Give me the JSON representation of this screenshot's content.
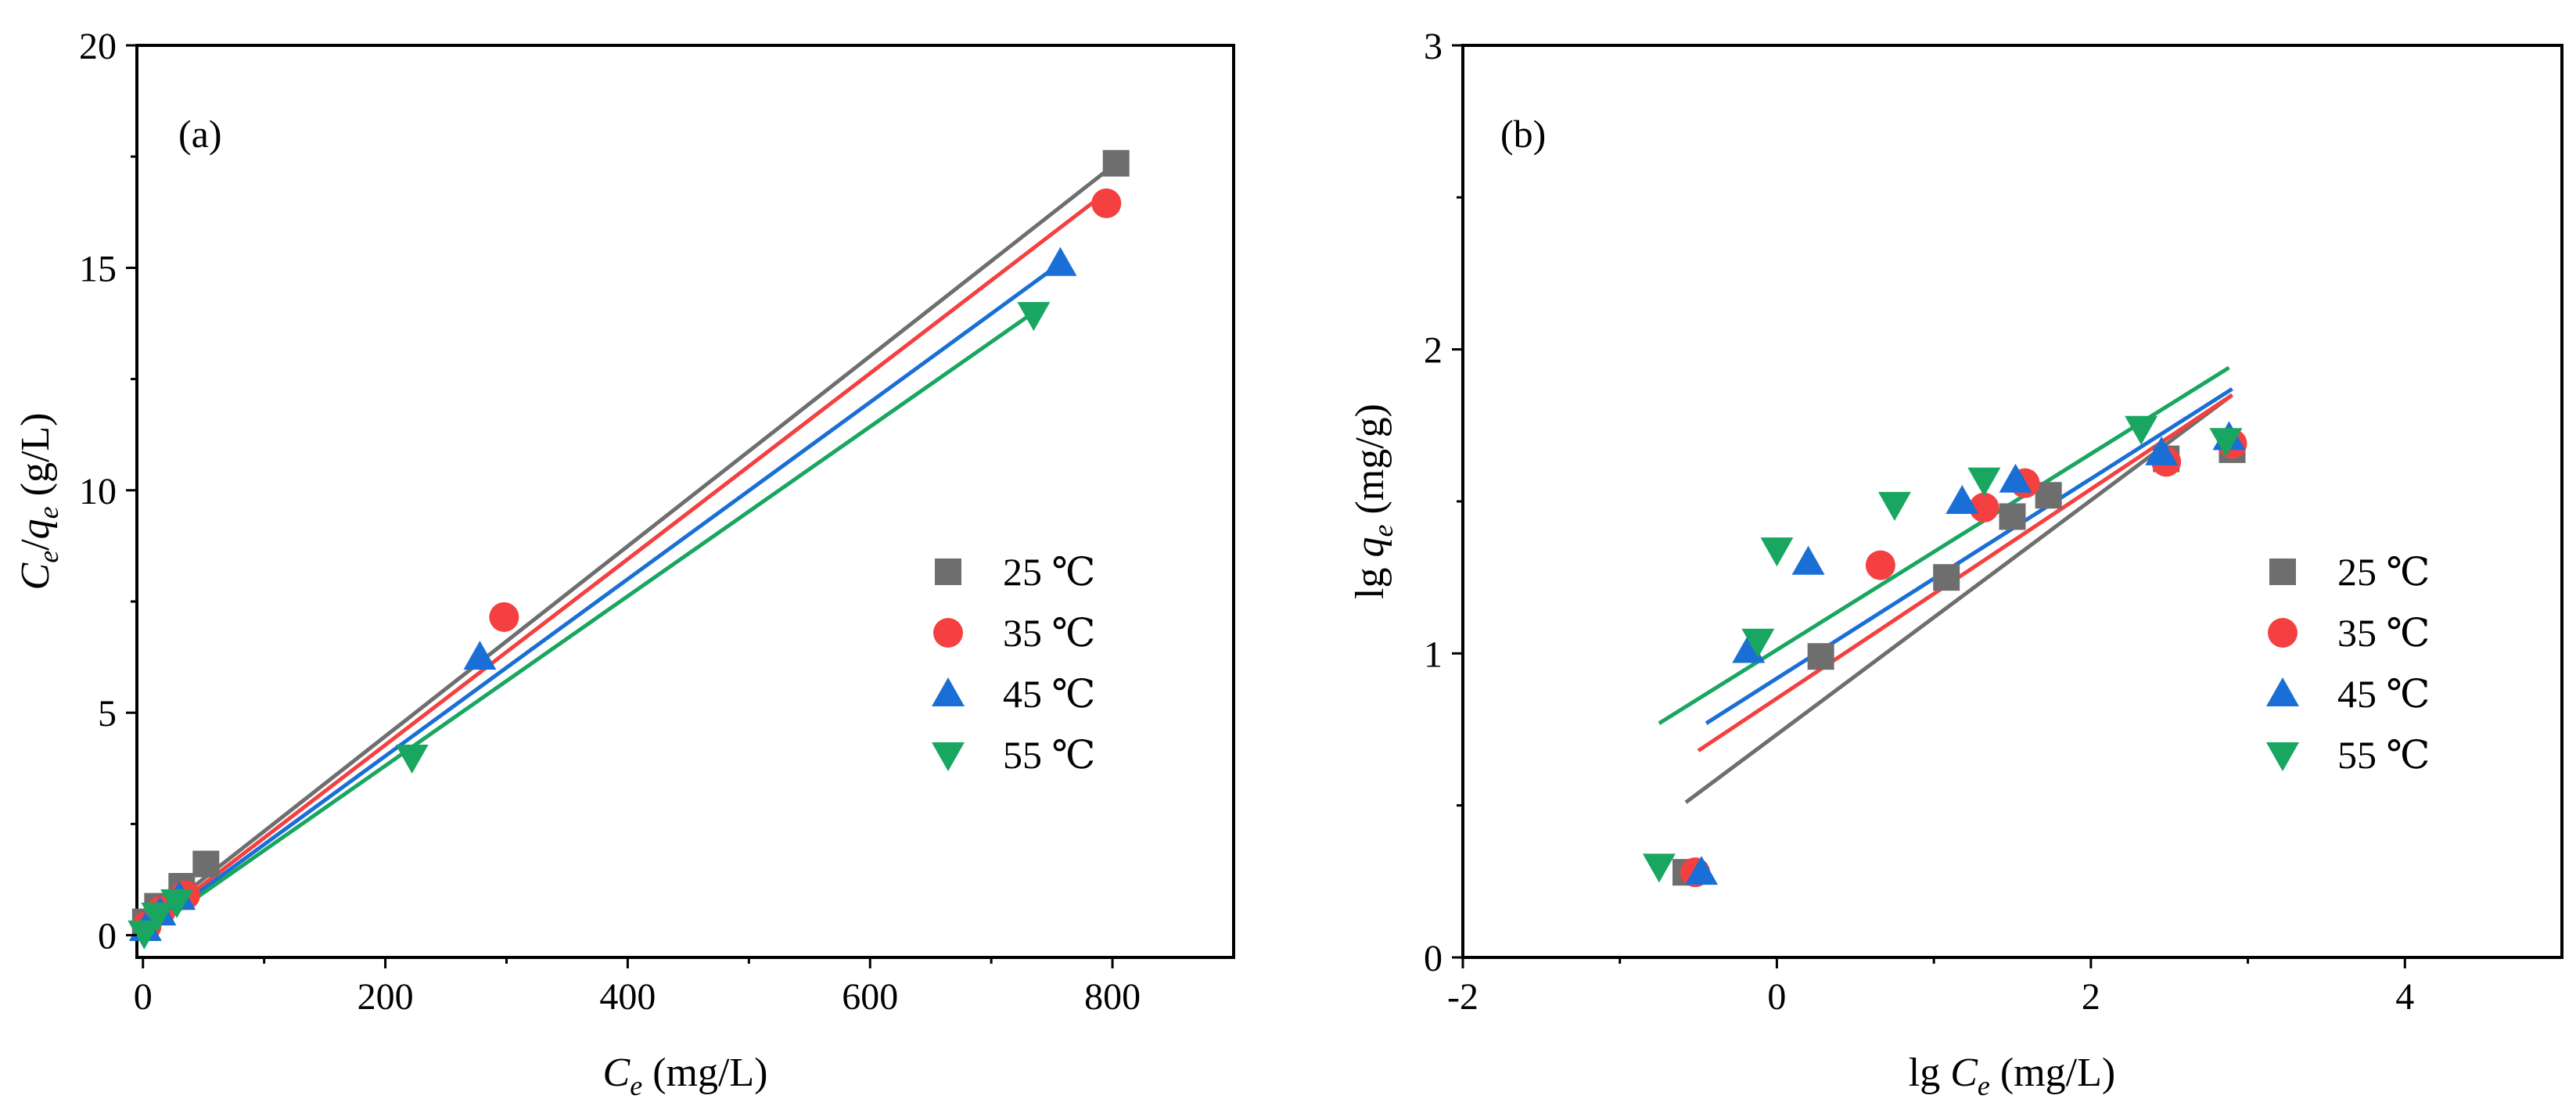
{
  "colors": {
    "c25": "#6e6e6e",
    "c35": "#f44040",
    "c45": "#1a6fd6",
    "c55": "#18a660"
  },
  "chart_data": [
    {
      "id": "a",
      "type": "scatter",
      "panel_label": "(a)",
      "xlabel": {
        "main": "C",
        "sub": "e",
        "unit": " (mg/L)"
      },
      "ylabel": {
        "c": "C",
        "c_sub": "e",
        "slash": "/",
        "q": "q",
        "q_sub": "e",
        "unit": " (g/L)"
      },
      "xlim": [
        -5,
        900
      ],
      "ylim": [
        -0.5,
        20
      ],
      "xticks": [
        0,
        200,
        400,
        600,
        800
      ],
      "xtick_labels": [
        "0",
        "200",
        "400",
        "600",
        "800"
      ],
      "yticks": [
        0,
        5,
        10,
        15,
        20
      ],
      "ytick_labels": [
        "0",
        "5",
        "10",
        "15",
        "20"
      ],
      "legend_position": "center-right",
      "series": [
        {
          "key": "s25",
          "name": "25 ℃",
          "marker": "square",
          "color": "#6e6e6e",
          "points": [
            [
              2,
              0.3
            ],
            [
              12,
              0.65
            ],
            [
              32,
              1.1
            ],
            [
              52,
              1.6
            ],
            [
              803,
              17.35
            ]
          ],
          "fit": [
            [
              0,
              0.2
            ],
            [
              803,
              17.35
            ]
          ]
        },
        {
          "key": "s35",
          "name": "35 ℃",
          "marker": "circle",
          "color": "#f44040",
          "points": [
            [
              3,
              0.2
            ],
            [
              15,
              0.55
            ],
            [
              35,
              0.9
            ],
            [
              298,
              7.15
            ],
            [
              795,
              16.45
            ]
          ],
          "fit": [
            [
              0,
              0.1
            ],
            [
              795,
              16.7
            ]
          ]
        },
        {
          "key": "s45",
          "name": "45 ℃",
          "marker": "triangle-up",
          "color": "#1a6fd6",
          "points": [
            [
              2,
              0.15
            ],
            [
              14,
              0.5
            ],
            [
              30,
              0.85
            ],
            [
              278,
              6.25
            ],
            [
              757,
              15.1
            ]
          ],
          "fit": [
            [
              0,
              0.05
            ],
            [
              757,
              15.1
            ]
          ]
        },
        {
          "key": "s55",
          "name": "55 ℃",
          "marker": "triangle-down",
          "color": "#18a660",
          "points": [
            [
              1,
              0.05
            ],
            [
              12,
              0.45
            ],
            [
              28,
              0.75
            ],
            [
              222,
              4.0
            ],
            [
              735,
              13.95
            ]
          ],
          "fit": [
            [
              0,
              0.0
            ],
            [
              735,
              14.0
            ]
          ]
        }
      ]
    },
    {
      "id": "b",
      "type": "scatter",
      "panel_label": "(b)",
      "xlabel": {
        "prefix": "lg ",
        "main": "C",
        "sub": "e",
        "unit": " (mg/L)"
      },
      "ylabel": {
        "prefix": "lg ",
        "main": "q",
        "sub": "e",
        "unit": " (mg/g)"
      },
      "xlim": [
        -2,
        5
      ],
      "ylim": [
        0,
        3
      ],
      "xticks": [
        -2,
        0,
        2,
        4
      ],
      "xtick_labels": [
        "-2",
        "0",
        "2",
        "4"
      ],
      "yticks": [
        0,
        1,
        2,
        3
      ],
      "ytick_labels": [
        "0",
        "1",
        "2",
        "3"
      ],
      "legend_position": "center-right",
      "series": [
        {
          "key": "s25",
          "name": "25 ℃",
          "marker": "square",
          "color": "#6e6e6e",
          "points": [
            [
              -0.58,
              0.28
            ],
            [
              0.28,
              0.99
            ],
            [
              1.08,
              1.25
            ],
            [
              1.5,
              1.45
            ],
            [
              1.73,
              1.52
            ],
            [
              2.48,
              1.64
            ],
            [
              2.9,
              1.67
            ]
          ],
          "fit": [
            [
              -0.58,
              0.51
            ],
            [
              2.9,
              1.85
            ]
          ]
        },
        {
          "key": "s35",
          "name": "35 ℃",
          "marker": "circle",
          "color": "#f44040",
          "points": [
            [
              -0.52,
              0.28
            ],
            [
              0.66,
              1.29
            ],
            [
              1.32,
              1.48
            ],
            [
              1.58,
              1.56
            ],
            [
              2.48,
              1.63
            ],
            [
              2.9,
              1.69
            ]
          ],
          "fit": [
            [
              -0.5,
              0.68
            ],
            [
              2.9,
              1.85
            ]
          ]
        },
        {
          "key": "s45",
          "name": "45 ℃",
          "marker": "triangle-up",
          "color": "#1a6fd6",
          "points": [
            [
              -0.48,
              0.28
            ],
            [
              -0.18,
              1.01
            ],
            [
              0.2,
              1.3
            ],
            [
              1.18,
              1.5
            ],
            [
              1.52,
              1.57
            ],
            [
              2.45,
              1.66
            ],
            [
              2.88,
              1.71
            ]
          ],
          "fit": [
            [
              -0.45,
              0.77
            ],
            [
              2.9,
              1.87
            ]
          ]
        },
        {
          "key": "s55",
          "name": "55 ℃",
          "marker": "triangle-down",
          "color": "#18a660",
          "points": [
            [
              -0.75,
              0.3
            ],
            [
              -0.12,
              1.04
            ],
            [
              0.0,
              1.34
            ],
            [
              0.75,
              1.49
            ],
            [
              1.32,
              1.57
            ],
            [
              2.32,
              1.74
            ],
            [
              2.86,
              1.7
            ]
          ],
          "fit": [
            [
              -0.75,
              0.77
            ],
            [
              2.88,
              1.94
            ]
          ]
        }
      ]
    }
  ]
}
